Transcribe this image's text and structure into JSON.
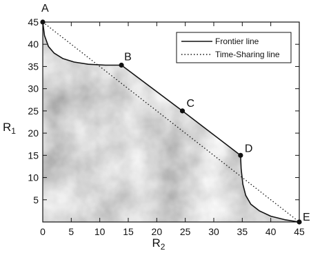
{
  "chart_data": {
    "type": "line",
    "xlabel": "R",
    "xlabel_sub": "2",
    "ylabel": "R",
    "ylabel_sub": "1",
    "xlim": [
      0,
      45
    ],
    "ylim": [
      0,
      45
    ],
    "xticks": [
      0,
      5,
      10,
      15,
      20,
      25,
      30,
      35,
      40,
      45
    ],
    "yticks": [
      5,
      10,
      15,
      20,
      25,
      30,
      35,
      40,
      45
    ],
    "grid": false,
    "legend_position": "top-right",
    "series": [
      {
        "name": "Frontier line",
        "style": "solid",
        "x": [
          0,
          0.3,
          1,
          2,
          3.5,
          5.5,
          8,
          11,
          13.8,
          24.5,
          34.7,
          34.8,
          35.1,
          35.6,
          36.5,
          38,
          40,
          42.5,
          45
        ],
        "y": [
          45,
          42,
          39.5,
          38,
          36.8,
          36,
          35.5,
          35.3,
          35.3,
          25,
          15,
          12,
          8.5,
          6,
          4,
          2.5,
          1.3,
          0.5,
          0
        ]
      },
      {
        "name": "Time-Sharing line",
        "style": "dotted",
        "x": [
          0,
          45
        ],
        "y": [
          45,
          0
        ]
      }
    ],
    "points": [
      {
        "label": "A",
        "x": 0,
        "y": 45
      },
      {
        "label": "B",
        "x": 13.8,
        "y": 35.3
      },
      {
        "label": "C",
        "x": 24.5,
        "y": 25
      },
      {
        "label": "D",
        "x": 34.7,
        "y": 15
      },
      {
        "label": "E",
        "x": 45,
        "y": 0
      }
    ]
  },
  "colors": {
    "line": "#111111",
    "region_light": "#e6e6e6",
    "region_dark": "#a8a8a8"
  }
}
